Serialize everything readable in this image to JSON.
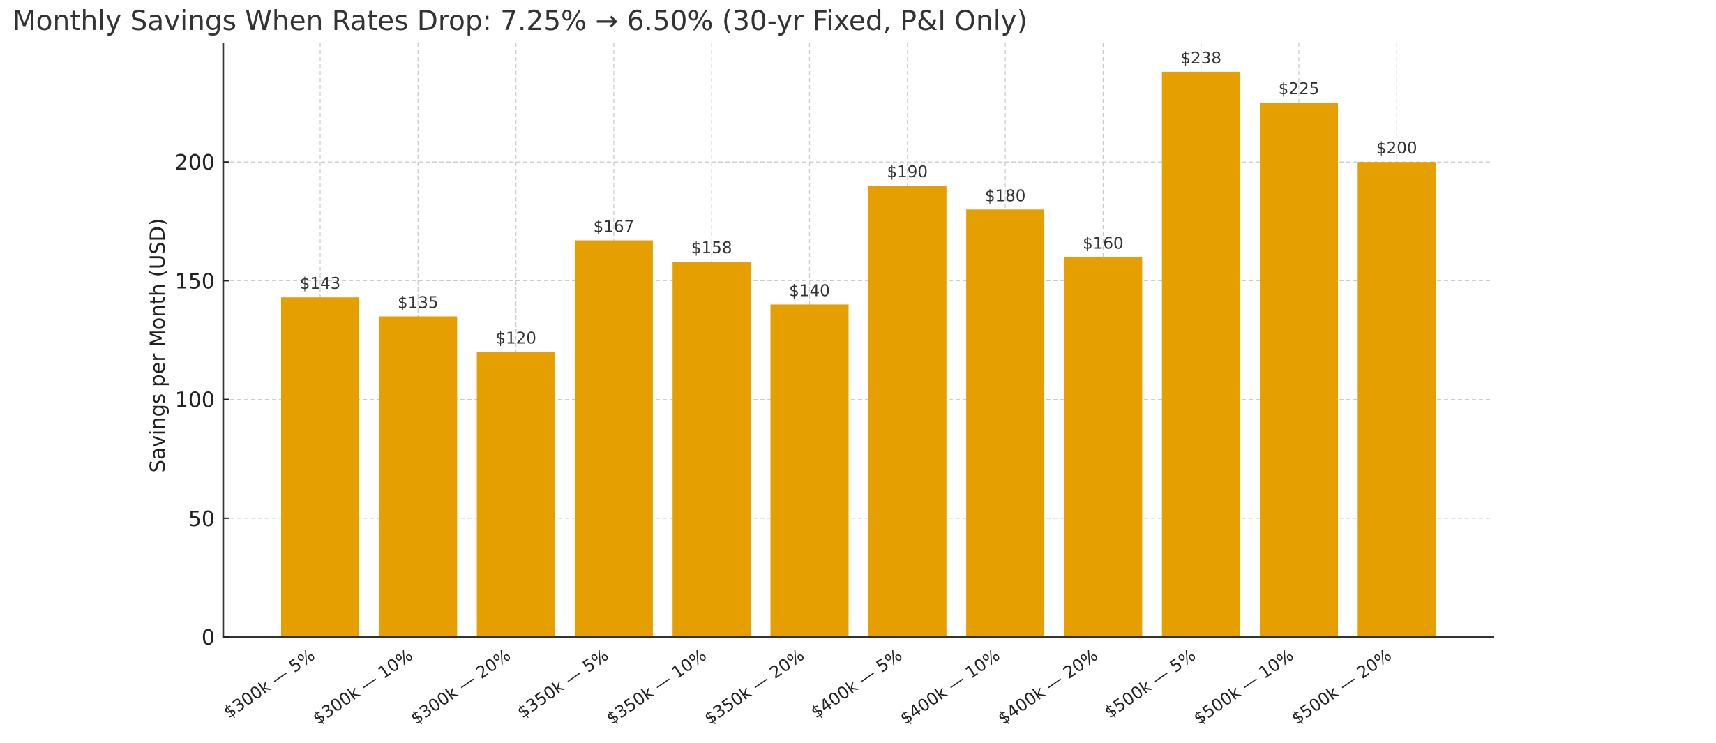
{
  "title": "Monthly Savings When Rates Drop: 7.25% → 6.50% (30-yr Fixed, P&I Only)",
  "colors": {
    "bar": "#E69F00",
    "grid": "#cccccc",
    "axis": "#333333",
    "text": "#333333"
  },
  "chart_data": {
    "type": "bar",
    "title": "Monthly Savings When Rates Drop: 7.25% → 6.50% (30-yr Fixed, P&I Only)",
    "xlabel": "",
    "ylabel": "Savings per Month (USD)",
    "categories": [
      "$300k — 5%",
      "$300k — 10%",
      "$300k — 20%",
      "$350k — 5%",
      "$350k — 10%",
      "$350k — 20%",
      "$400k — 5%",
      "$400k — 10%",
      "$400k — 20%",
      "$500k — 5%",
      "$500k — 10%",
      "$500k — 20%"
    ],
    "values": [
      143,
      135,
      120,
      167,
      158,
      140,
      190,
      180,
      160,
      238,
      225,
      200
    ],
    "data_labels": [
      "$143",
      "$135",
      "$120",
      "$167",
      "$158",
      "$140",
      "$190",
      "$180",
      "$160",
      "$238",
      "$225",
      "$200"
    ],
    "ylim": [
      0,
      250
    ],
    "yticks": [
      0,
      50,
      100,
      150,
      200
    ],
    "ytick_labels": [
      "0",
      "50",
      "100",
      "150",
      "200"
    ],
    "grid": true,
    "grid_style": "dashed",
    "legend": null,
    "x_tick_rotation": 35
  }
}
